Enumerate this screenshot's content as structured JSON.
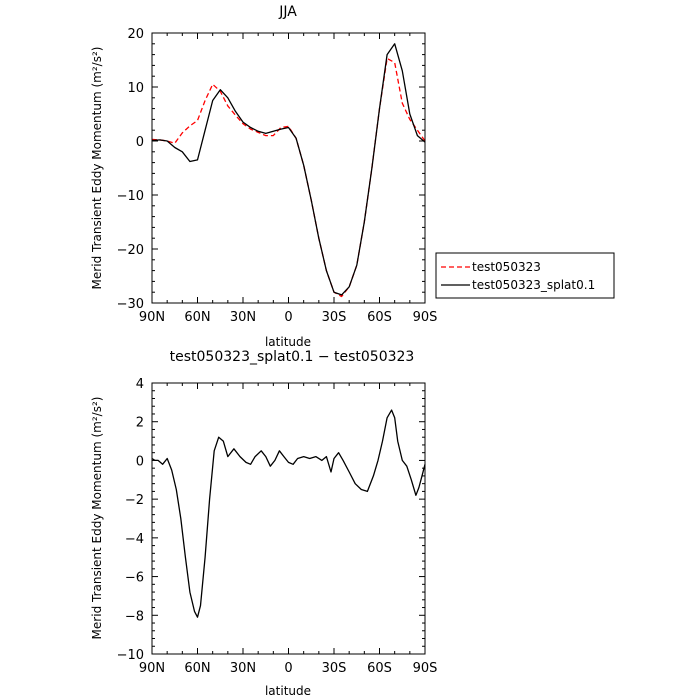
{
  "colors": {
    "series1": "#ff0000",
    "series2": "#000000",
    "axis": "#000000"
  },
  "chart_data": [
    {
      "type": "line",
      "title": "JJA",
      "xlabel": "latitude",
      "ylabel": "Merid Transient Eddy Momentum (m²/s²)",
      "xlim": [
        90,
        -90
      ],
      "ylim": [
        -30,
        20
      ],
      "xticks": [
        {
          "value": 90,
          "label": "90N"
        },
        {
          "value": 60,
          "label": "60N"
        },
        {
          "value": 30,
          "label": "30N"
        },
        {
          "value": 0,
          "label": "0"
        },
        {
          "value": -30,
          "label": "30S"
        },
        {
          "value": -60,
          "label": "60S"
        },
        {
          "value": -90,
          "label": "90S"
        }
      ],
      "yticks": [
        {
          "value": 20,
          "label": "20"
        },
        {
          "value": 10,
          "label": "10"
        },
        {
          "value": 0,
          "label": "0"
        },
        {
          "value": -10,
          "label": "−10"
        },
        {
          "value": -20,
          "label": "−20"
        },
        {
          "value": -30,
          "label": "−30"
        }
      ],
      "legend": {
        "position": "right",
        "entries": [
          "test050323",
          "test050323_splat0.1"
        ]
      },
      "series": [
        {
          "name": "test050323",
          "color": "#ff0000",
          "style": "dashed",
          "x": [
            90,
            85,
            80,
            75,
            70,
            65,
            60,
            55,
            50,
            45,
            40,
            35,
            30,
            25,
            20,
            15,
            10,
            5,
            0,
            -5,
            -10,
            -15,
            -20,
            -25,
            -30,
            -35,
            -40,
            -45,
            -50,
            -55,
            -60,
            -65,
            -70,
            -75,
            -80,
            -85,
            -90
          ],
          "values": [
            0.3,
            0.2,
            0,
            -0.4,
            1.5,
            2.8,
            3.8,
            7.5,
            10.5,
            9.2,
            6.5,
            4.8,
            3.2,
            2.2,
            1.6,
            1.0,
            1.0,
            2.5,
            2.7,
            0.5,
            -4.5,
            -11,
            -18,
            -24,
            -28,
            -28.8,
            -27,
            -23,
            -15,
            -5,
            6,
            15.3,
            14.5,
            7,
            4,
            2,
            0
          ]
        },
        {
          "name": "test050323_splat0.1",
          "color": "#000000",
          "style": "solid",
          "x": [
            90,
            85,
            80,
            75,
            70,
            65,
            60,
            55,
            50,
            45,
            40,
            35,
            30,
            25,
            20,
            15,
            10,
            5,
            0,
            -5,
            -10,
            -15,
            -20,
            -25,
            -30,
            -35,
            -40,
            -45,
            -50,
            -55,
            -60,
            -65,
            -70,
            -75,
            -80,
            -85,
            -90
          ],
          "values": [
            0.1,
            0.2,
            0,
            -1.2,
            -2,
            -3.8,
            -3.5,
            2,
            7.5,
            9.5,
            8,
            5.5,
            3.5,
            2.5,
            1.8,
            1.4,
            1.8,
            2.2,
            2.5,
            0.5,
            -4.5,
            -11,
            -18,
            -24,
            -28,
            -28.5,
            -27,
            -23,
            -15,
            -5,
            6,
            16,
            18,
            13,
            5,
            1,
            -0.2
          ]
        }
      ]
    },
    {
      "type": "line",
      "title": "test050323_splat0.1 − test050323",
      "xlabel": "latitude",
      "ylabel": "Merid Transient Eddy Momentum (m²/s²)",
      "xlim": [
        90,
        -90
      ],
      "ylim": [
        -10,
        4
      ],
      "xticks": [
        {
          "value": 90,
          "label": "90N"
        },
        {
          "value": 60,
          "label": "60N"
        },
        {
          "value": 30,
          "label": "30N"
        },
        {
          "value": 0,
          "label": "0"
        },
        {
          "value": -30,
          "label": "30S"
        },
        {
          "value": -60,
          "label": "60S"
        },
        {
          "value": -90,
          "label": "90S"
        }
      ],
      "yticks": [
        {
          "value": 4,
          "label": "4"
        },
        {
          "value": 2,
          "label": "2"
        },
        {
          "value": 0,
          "label": "0"
        },
        {
          "value": -2,
          "label": "−2"
        },
        {
          "value": -4,
          "label": "−4"
        },
        {
          "value": -6,
          "label": "−6"
        },
        {
          "value": -8,
          "label": "−8"
        },
        {
          "value": -10,
          "label": "−10"
        }
      ],
      "series": [
        {
          "color": "#000000",
          "style": "solid",
          "x": [
            90,
            88,
            86,
            83,
            80,
            77,
            74,
            71,
            68,
            65,
            62,
            60,
            58,
            55,
            52,
            49,
            46,
            43,
            40,
            36,
            32,
            28,
            25,
            22,
            18,
            15,
            12,
            9,
            6,
            3,
            0,
            -3,
            -6,
            -10,
            -14,
            -18,
            -22,
            -25,
            -28,
            -30,
            -33,
            -36,
            -40,
            -44,
            -48,
            -52,
            -56,
            -59,
            -62,
            -65,
            -68,
            -70,
            -72,
            -75,
            -78,
            -81,
            -84,
            -86,
            -88,
            -90
          ],
          "values": [
            0.1,
            0.0,
            0.0,
            -0.2,
            0.1,
            -0.5,
            -1.5,
            -3,
            -5,
            -6.8,
            -7.8,
            -8.1,
            -7.5,
            -5,
            -2,
            0.5,
            1.2,
            1.0,
            0.2,
            0.6,
            0.2,
            -0.1,
            -0.2,
            0.2,
            0.5,
            0.2,
            -0.3,
            0.0,
            0.5,
            0.2,
            -0.1,
            -0.2,
            0.1,
            0.2,
            0.1,
            0.2,
            0.0,
            0.2,
            -0.6,
            0.1,
            0.4,
            0.0,
            -0.6,
            -1.2,
            -1.5,
            -1.6,
            -0.8,
            0.0,
            1.0,
            2.2,
            2.6,
            2.2,
            1.0,
            0.0,
            -0.3,
            -1.0,
            -1.8,
            -1.4,
            -0.8,
            -0.2
          ]
        }
      ]
    }
  ]
}
